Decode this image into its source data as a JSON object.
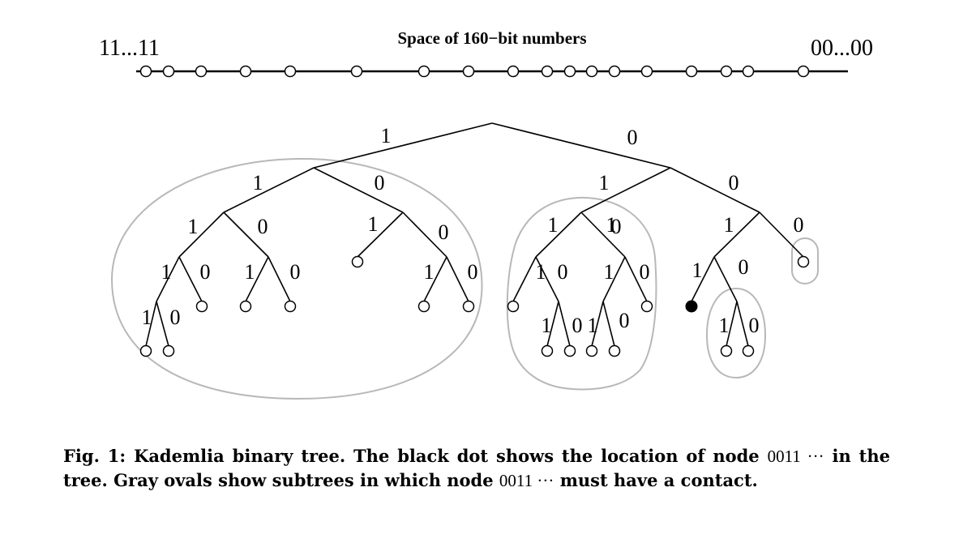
{
  "numberline": {
    "title": "Space of 160−bit numbers",
    "left_label": "11...11",
    "right_label": "00...00"
  },
  "edge_labels": {
    "one": "1",
    "zero": "0"
  },
  "caption": {
    "fig_label": "Fig. 1:",
    "text_1": "Kademlia binary tree. The black dot shows the location of node",
    "node_id_1": "0011 ···",
    "text_2": "in the tree. Gray ovals show subtrees in which node",
    "node_id_2": "0011 ···",
    "text_3": "must have a contact."
  },
  "colors": {
    "line": "#000000",
    "oval": "#b8b8b8",
    "node_fill": "#ffffff",
    "highlight_node": "#000000"
  }
}
